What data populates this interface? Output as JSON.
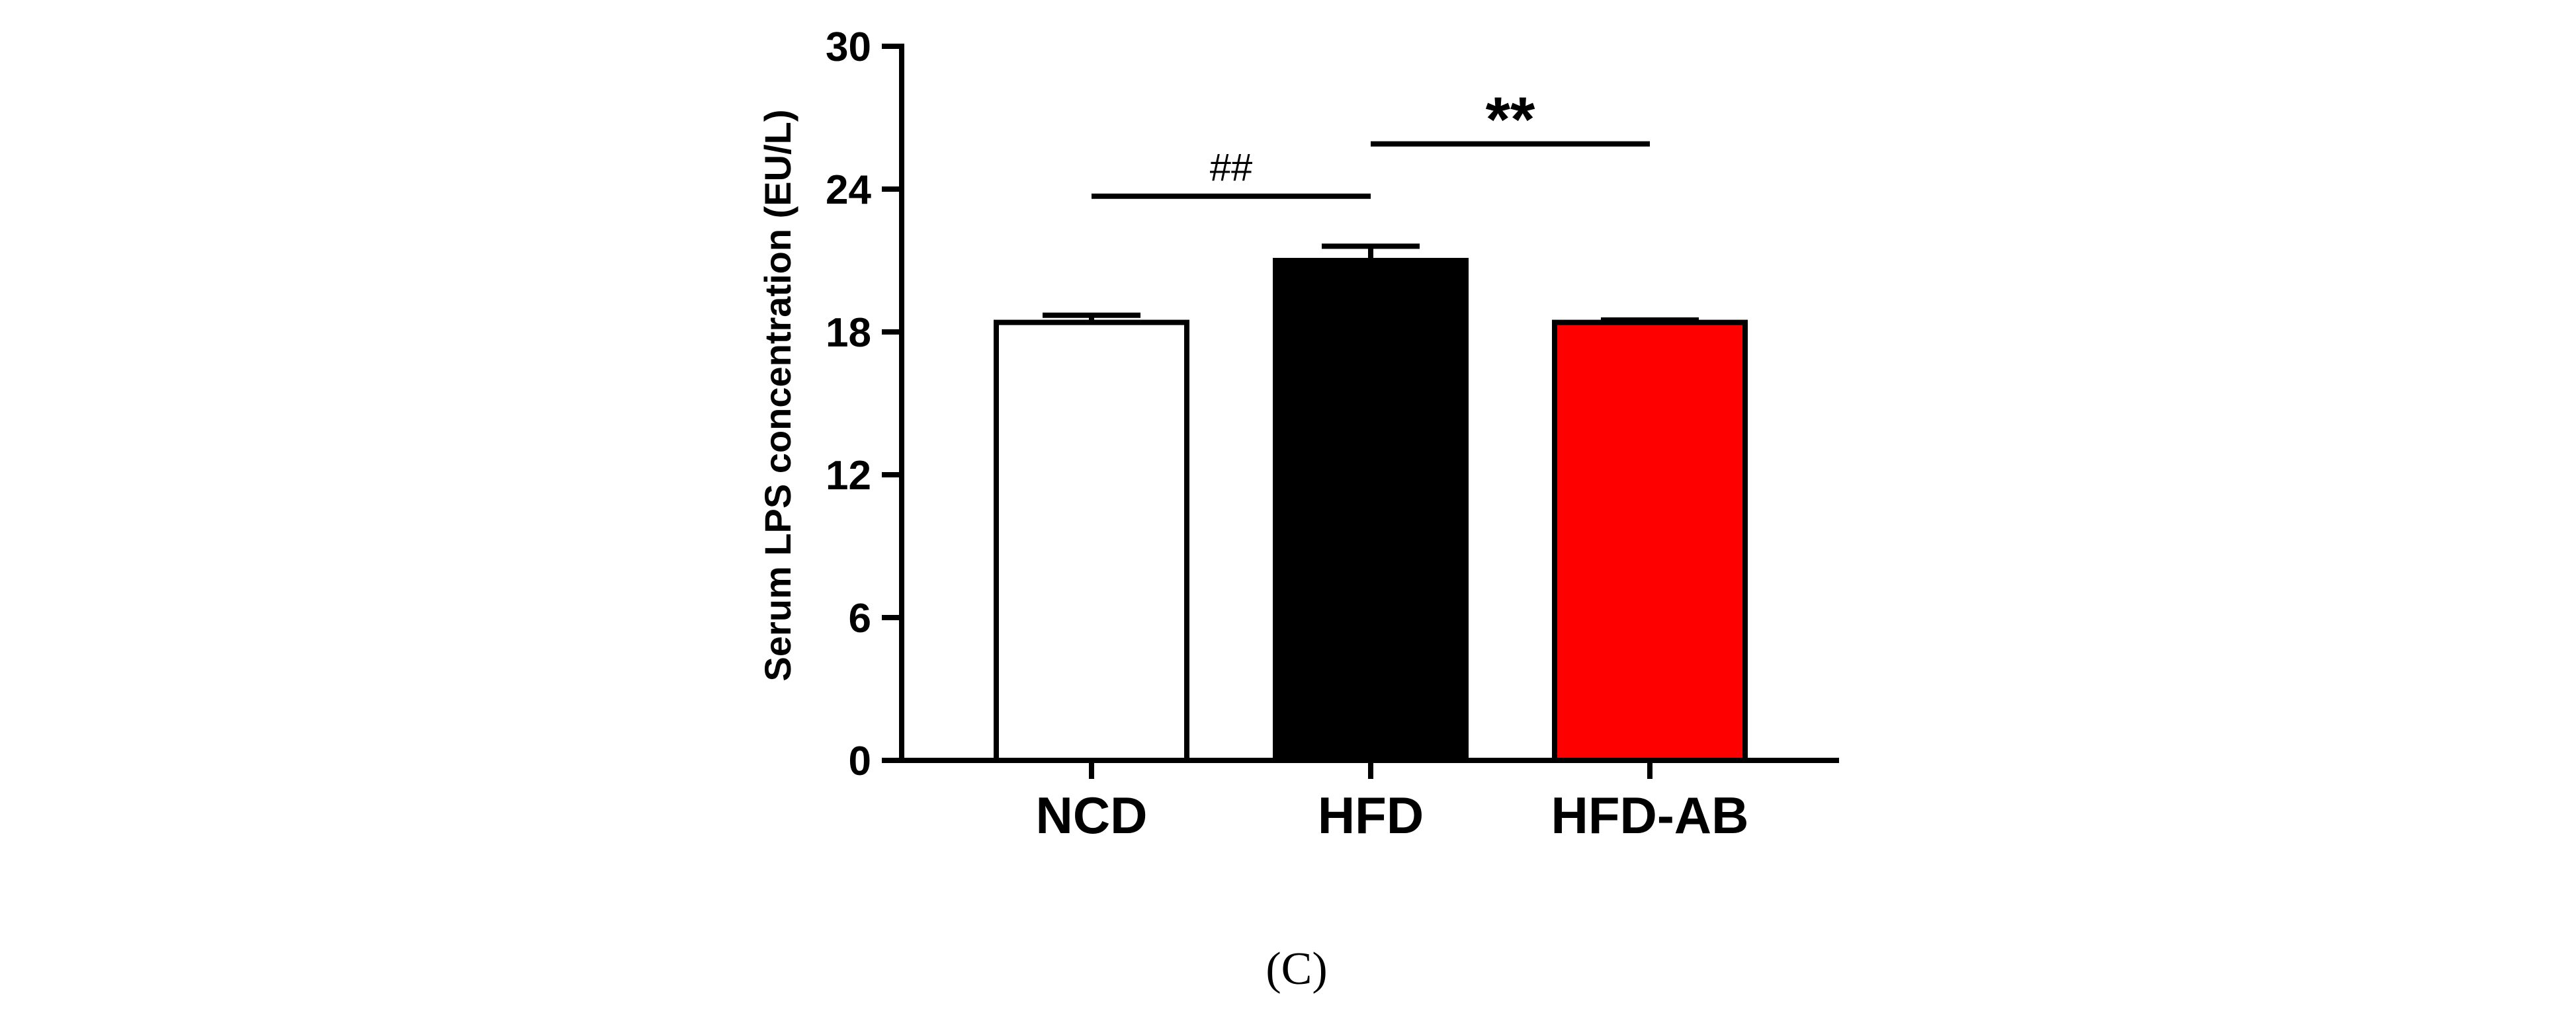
{
  "chart_data": {
    "type": "bar",
    "categories": [
      "NCD",
      "HFD",
      "HFD-AB"
    ],
    "values": [
      18.4,
      21.0,
      18.4
    ],
    "errors": [
      0.3,
      0.6,
      0.1
    ],
    "colors": [
      "#ffffff",
      "#000000",
      "#ff0000"
    ],
    "ylabel": "Serum LPS concentration (EU/L)",
    "xlabel": "",
    "ylim": [
      0,
      30
    ],
    "yticks": [
      0,
      6,
      12,
      18,
      24,
      30
    ],
    "ytick_labels": [
      "0",
      "6",
      "12",
      "18",
      "24",
      "30"
    ],
    "significance": [
      {
        "from": "NCD",
        "to": "HFD",
        "label": "##",
        "y": 23.7
      },
      {
        "from": "HFD",
        "to": "HFD-AB",
        "label": "**",
        "y": 25.9
      }
    ],
    "panel_label": "(C)"
  }
}
